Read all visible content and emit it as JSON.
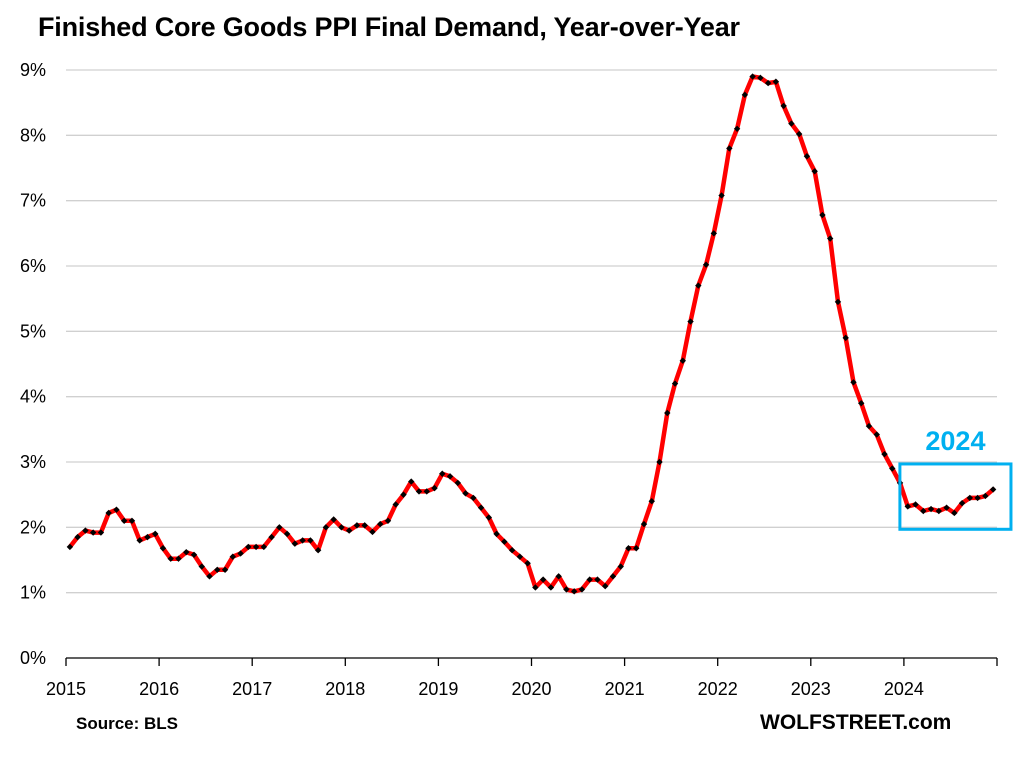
{
  "chart_data": {
    "type": "line",
    "title": "Finished Core Goods PPI Final Demand, Year-over-Year",
    "xlabel": "",
    "ylabel": "",
    "x_tick_labels": [
      "2015",
      "2016",
      "2017",
      "2018",
      "2019",
      "2020",
      "2021",
      "2022",
      "2023",
      "2024"
    ],
    "y_tick_labels": [
      "0%",
      "1%",
      "2%",
      "3%",
      "4%",
      "5%",
      "6%",
      "7%",
      "8%",
      "9%"
    ],
    "ylim": [
      0,
      9
    ],
    "xlim": [
      2015.0,
      2025.0
    ],
    "grid": "horizontal",
    "series": [
      {
        "name": "Finished Core Goods PPI YoY %",
        "color": "#ff0000",
        "marker_color": "#000000",
        "start": "2015-01",
        "frequency": "monthly",
        "values": [
          1.7,
          1.85,
          1.95,
          1.92,
          1.92,
          2.22,
          2.27,
          2.1,
          2.1,
          1.8,
          1.85,
          1.9,
          1.68,
          1.52,
          1.52,
          1.62,
          1.58,
          1.4,
          1.25,
          1.35,
          1.35,
          1.55,
          1.6,
          1.7,
          1.7,
          1.7,
          1.85,
          2.0,
          1.9,
          1.75,
          1.8,
          1.8,
          1.65,
          2.0,
          2.12,
          2.0,
          1.95,
          2.03,
          2.03,
          1.93,
          2.05,
          2.1,
          2.35,
          2.5,
          2.7,
          2.55,
          2.55,
          2.6,
          2.82,
          2.78,
          2.68,
          2.52,
          2.45,
          2.3,
          2.15,
          1.9,
          1.78,
          1.65,
          1.55,
          1.45,
          1.08,
          1.2,
          1.08,
          1.25,
          1.05,
          1.02,
          1.05,
          1.2,
          1.2,
          1.1,
          1.25,
          1.4,
          1.68,
          1.68,
          2.05,
          2.4,
          3.0,
          3.75,
          4.2,
          4.55,
          5.15,
          5.7,
          6.02,
          6.5,
          7.08,
          7.8,
          8.1,
          8.62,
          8.9,
          8.88,
          8.8,
          8.82,
          8.45,
          8.18,
          8.02,
          7.68,
          7.45,
          6.78,
          6.42,
          5.45,
          4.9,
          4.22,
          3.9,
          3.55,
          3.42,
          3.12,
          2.9,
          2.68,
          2.32,
          2.35,
          2.25,
          2.28,
          2.25,
          2.3,
          2.22,
          2.37,
          2.45,
          2.45,
          2.48,
          2.58
        ]
      }
    ],
    "annotations": [
      {
        "text": "2024",
        "color": "#00b0f0",
        "type": "highlight-box",
        "x_range": [
          2024.0,
          2025.15
        ],
        "y_range": [
          1.97,
          2.97
        ]
      }
    ]
  },
  "footer": {
    "source": "Source: BLS",
    "brand": "WOLFSTREET.com"
  }
}
